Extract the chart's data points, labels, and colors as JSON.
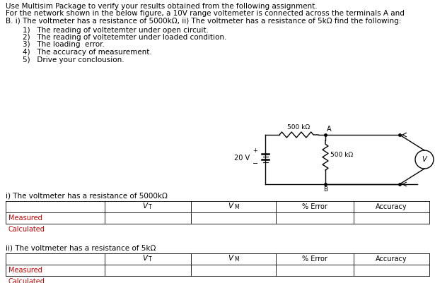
{
  "bg_color": "#ffffff",
  "text_color": "#000000",
  "table_red": "#cc0000",
  "title_lines": [
    "Use Multisim Package to verify your results obtained from the following assignment.",
    "For the network shown in the below figure, a 10V range voltemeter is connected across the terminals A and",
    "B. i) The voltmeter has a resistance of 5000kΩ, ii) The voltmeter has a resistance of 5kΩ find the following:"
  ],
  "list_items": [
    "1)   The reading of voltetemter under open circuit.",
    "2)   The reading of voltetemter under loaded condition.",
    "3)   The loading  error.",
    "4)   The accuracy of measurement.",
    "5)   Drive your conclousion."
  ],
  "section1_label": "i) The voltmeter has a resistance of 5000kΩ",
  "section2_label": "ii) The voltmeter has a resistance of 5kΩ",
  "row_labels": [
    "Measured",
    "Calculated"
  ],
  "resistor1_label": "500 kΩ",
  "resistor2_label": "500 kΩ",
  "voltage_label": "20 V",
  "node_A": "A",
  "node_B": "B",
  "font_size_body": 7.5,
  "font_size_table": 7.5,
  "font_size_circuit": 6.5
}
